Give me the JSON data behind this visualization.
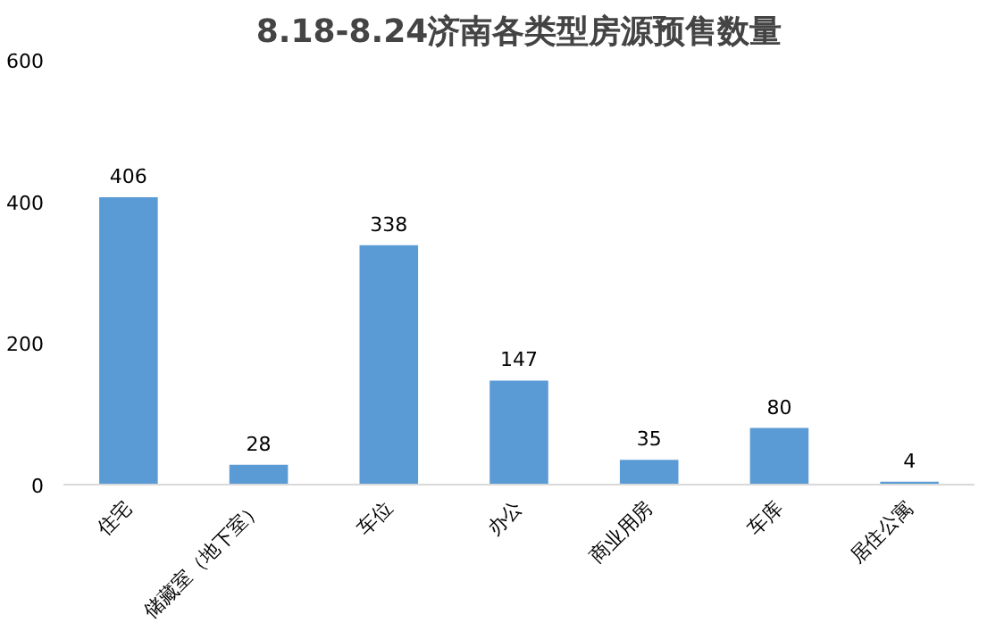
{
  "chart_data": {
    "type": "bar",
    "title": "8.18-8.24济南各类型房源预售数量",
    "categories": [
      "住宅",
      "储藏室（地下室）",
      "车位",
      "办公",
      "商业用房",
      "车库",
      "居住公寓"
    ],
    "values": [
      406,
      28,
      338,
      147,
      35,
      80,
      4
    ],
    "color": "#5b9bd5",
    "ylim": [
      0,
      600
    ],
    "yticks": [
      0,
      200,
      400,
      600
    ],
    "grid": false,
    "data_labels": true
  }
}
